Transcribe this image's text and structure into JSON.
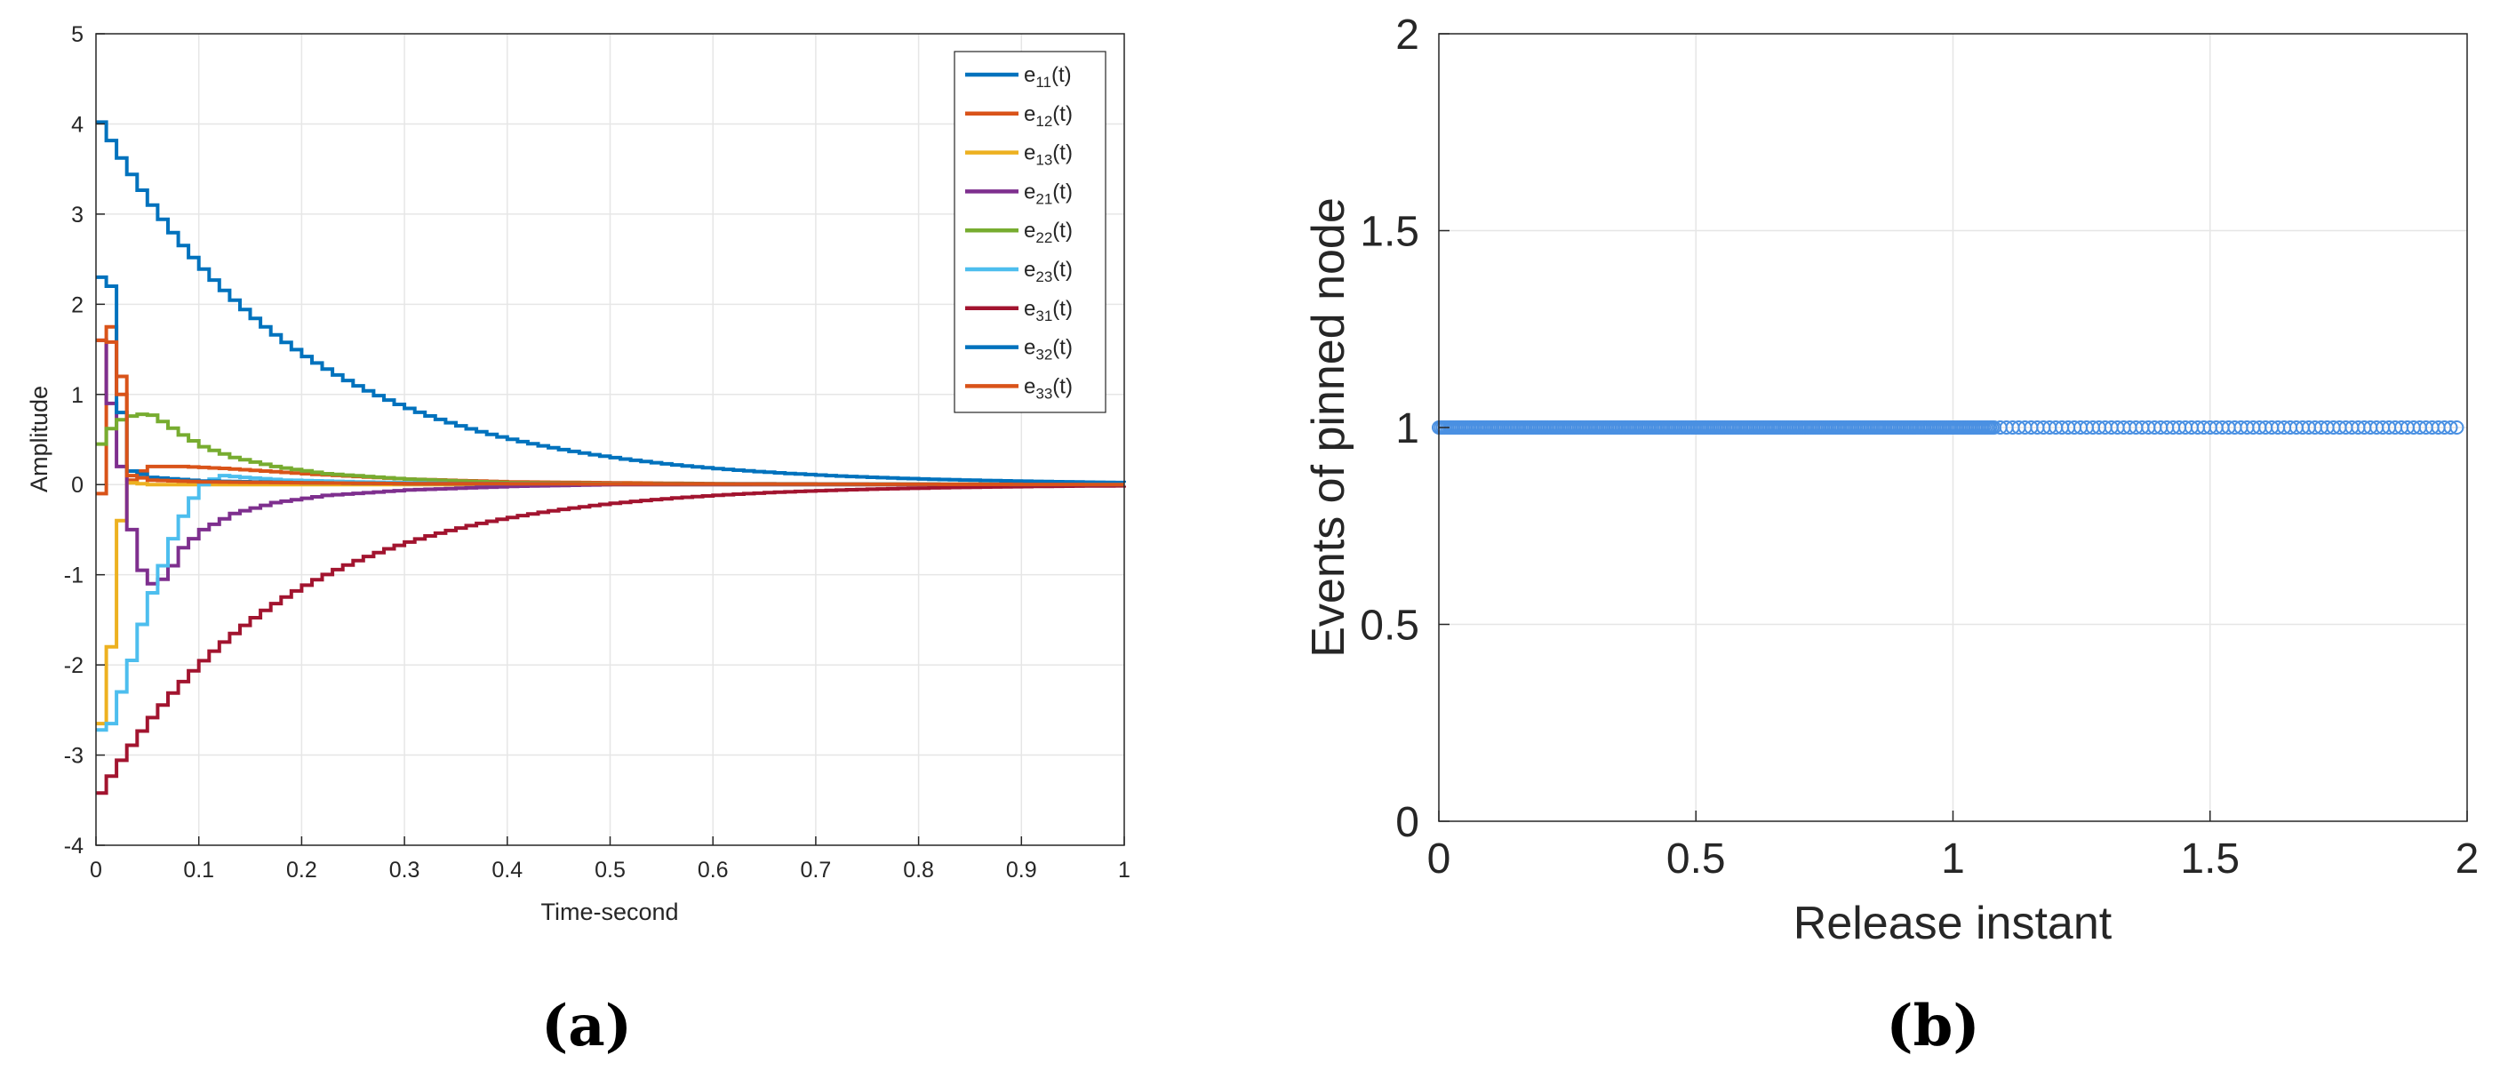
{
  "chart_data": [
    {
      "type": "line",
      "xlabel": "Time-second",
      "ylabel": "Amplitude",
      "xlim": [
        0,
        1
      ],
      "ylim": [
        -4,
        5
      ],
      "xticks": [
        "0",
        "0.1",
        "0.2",
        "0.3",
        "0.4",
        "0.5",
        "0.6",
        "0.7",
        "0.8",
        "0.9",
        "1"
      ],
      "yticks": [
        "-4",
        "-3",
        "-2",
        "-1",
        "0",
        "1",
        "2",
        "3",
        "4",
        "5"
      ],
      "grid": true,
      "legend_position": "top-right",
      "step_interval": 0.01,
      "sublabel": {
        "open": "(",
        "letter": "a",
        "close": ")"
      },
      "series": [
        {
          "name": "e",
          "sub": "11",
          "suffix": "(t)",
          "color": "#0072bd",
          "initial": 4.02,
          "decay": 5.2,
          "osc": 0,
          "phase": 0
        },
        {
          "name": "e",
          "sub": "12",
          "suffix": "(t)",
          "color": "#d95319",
          "initial": -0.1,
          "decay": 14,
          "osc": 0,
          "phase": 0,
          "keypoints": [
            [
              0,
              -0.1
            ],
            [
              0.005,
              1.55
            ],
            [
              0.01,
              1.75
            ],
            [
              0.015,
              1.6
            ],
            [
              0.02,
              1.2
            ],
            [
              0.025,
              0.5
            ],
            [
              0.03,
              0.05
            ],
            [
              0.04,
              0.15
            ],
            [
              0.05,
              0.2
            ],
            [
              0.08,
              0.2
            ],
            [
              0.12,
              0.18
            ],
            [
              0.2,
              0.12
            ],
            [
              0.3,
              0.06
            ],
            [
              0.4,
              0.03
            ],
            [
              0.6,
              0.01
            ],
            [
              1,
              0
            ]
          ]
        },
        {
          "name": "e",
          "sub": "13",
          "suffix": "(t)",
          "color": "#edb120",
          "initial": -2.65,
          "keypoints": [
            [
              0,
              -2.65
            ],
            [
              0.005,
              -2.3
            ],
            [
              0.01,
              -1.8
            ],
            [
              0.015,
              -1.5
            ],
            [
              0.02,
              -0.4
            ],
            [
              0.025,
              -0.05
            ],
            [
              0.03,
              0.02
            ],
            [
              0.05,
              0.0
            ],
            [
              1,
              0
            ]
          ]
        },
        {
          "name": "e",
          "sub": "21",
          "suffix": "(t)",
          "color": "#7e2f8e",
          "initial": 1.55,
          "keypoints": [
            [
              0,
              1.6
            ],
            [
              0.005,
              1.5
            ],
            [
              0.01,
              0.9
            ],
            [
              0.015,
              0.6
            ],
            [
              0.02,
              0.2
            ],
            [
              0.03,
              -0.5
            ],
            [
              0.04,
              -0.95
            ],
            [
              0.05,
              -1.1
            ],
            [
              0.06,
              -1.05
            ],
            [
              0.07,
              -0.9
            ],
            [
              0.08,
              -0.7
            ],
            [
              0.1,
              -0.5
            ],
            [
              0.13,
              -0.32
            ],
            [
              0.17,
              -0.2
            ],
            [
              0.22,
              -0.12
            ],
            [
              0.3,
              -0.06
            ],
            [
              0.4,
              -0.02
            ],
            [
              0.5,
              0
            ],
            [
              1,
              0
            ]
          ]
        },
        {
          "name": "e",
          "sub": "22",
          "suffix": "(t)",
          "color": "#77ac30",
          "initial": 0.45,
          "keypoints": [
            [
              0,
              0.45
            ],
            [
              0.005,
              0.48
            ],
            [
              0.01,
              0.62
            ],
            [
              0.02,
              0.72
            ],
            [
              0.03,
              0.76
            ],
            [
              0.04,
              0.78
            ],
            [
              0.05,
              0.77
            ],
            [
              0.06,
              0.7
            ],
            [
              0.08,
              0.55
            ],
            [
              0.1,
              0.42
            ],
            [
              0.13,
              0.3
            ],
            [
              0.17,
              0.2
            ],
            [
              0.22,
              0.12
            ],
            [
              0.3,
              0.06
            ],
            [
              0.4,
              0.02
            ],
            [
              0.5,
              0.01
            ],
            [
              1,
              0
            ]
          ]
        },
        {
          "name": "e",
          "sub": "23",
          "suffix": "(t)",
          "color": "#4dbeee",
          "initial": -2.72,
          "keypoints": [
            [
              0,
              -2.72
            ],
            [
              0.01,
              -2.65
            ],
            [
              0.015,
              -2.3
            ],
            [
              0.02,
              -2.3
            ],
            [
              0.025,
              -1.95
            ],
            [
              0.03,
              -1.95
            ],
            [
              0.04,
              -1.55
            ],
            [
              0.05,
              -1.2
            ],
            [
              0.06,
              -0.9
            ],
            [
              0.07,
              -0.6
            ],
            [
              0.08,
              -0.35
            ],
            [
              0.09,
              -0.15
            ],
            [
              0.1,
              0.0
            ],
            [
              0.11,
              0.06
            ],
            [
              0.12,
              0.1
            ],
            [
              0.14,
              0.08
            ],
            [
              0.18,
              0.05
            ],
            [
              0.25,
              0.03
            ],
            [
              0.35,
              0.01
            ],
            [
              1,
              0
            ]
          ]
        },
        {
          "name": "e",
          "sub": "31",
          "suffix": "(t)",
          "color": "#a2142f",
          "initial": -3.42,
          "decay": 5.6,
          "osc": 0,
          "phase": 0
        },
        {
          "name": "e",
          "sub": "32",
          "suffix": "(t)",
          "color": "#0072bd",
          "initial": 2.3,
          "keypoints": [
            [
              0,
              2.3
            ],
            [
              0.005,
              2.25
            ],
            [
              0.01,
              2.2
            ],
            [
              0.015,
              1.5
            ],
            [
              0.02,
              0.8
            ],
            [
              0.025,
              0.35
            ],
            [
              0.03,
              0.15
            ],
            [
              0.05,
              0.08
            ],
            [
              0.1,
              0.04
            ],
            [
              0.2,
              0.02
            ],
            [
              0.3,
              0.01
            ],
            [
              1,
              0
            ]
          ]
        },
        {
          "name": "e",
          "sub": "33",
          "suffix": "(t)",
          "color": "#d95319",
          "initial": 1.55,
          "keypoints": [
            [
              0,
              1.6
            ],
            [
              0.005,
              1.62
            ],
            [
              0.01,
              1.58
            ],
            [
              0.015,
              1.4
            ],
            [
              0.02,
              1.0
            ],
            [
              0.025,
              0.3
            ],
            [
              0.03,
              0.1
            ],
            [
              0.05,
              0.05
            ],
            [
              0.1,
              0.03
            ],
            [
              0.3,
              0.01
            ],
            [
              1,
              0
            ]
          ]
        }
      ]
    },
    {
      "type": "scatter",
      "xlabel": "Release instant",
      "ylabel": "Events of pinned node",
      "xlim": [
        0,
        2
      ],
      "ylim": [
        0,
        2
      ],
      "xticks": [
        "0",
        "0.5",
        "1",
        "1.5",
        "2"
      ],
      "yticks": [
        "0",
        "0.5",
        "1",
        "1.5",
        "2"
      ],
      "grid": true,
      "marker": "circle",
      "color": "#4a90e2",
      "points_y": 1,
      "x_dense_start": 0,
      "x_dense_end": 1.08,
      "x_dense_step": 0.004,
      "x_sparse_start": 1.08,
      "x_sparse_end": 1.99,
      "x_sparse_step": 0.012,
      "sublabel": {
        "open": "(",
        "letter": "b",
        "close": ")"
      }
    }
  ]
}
